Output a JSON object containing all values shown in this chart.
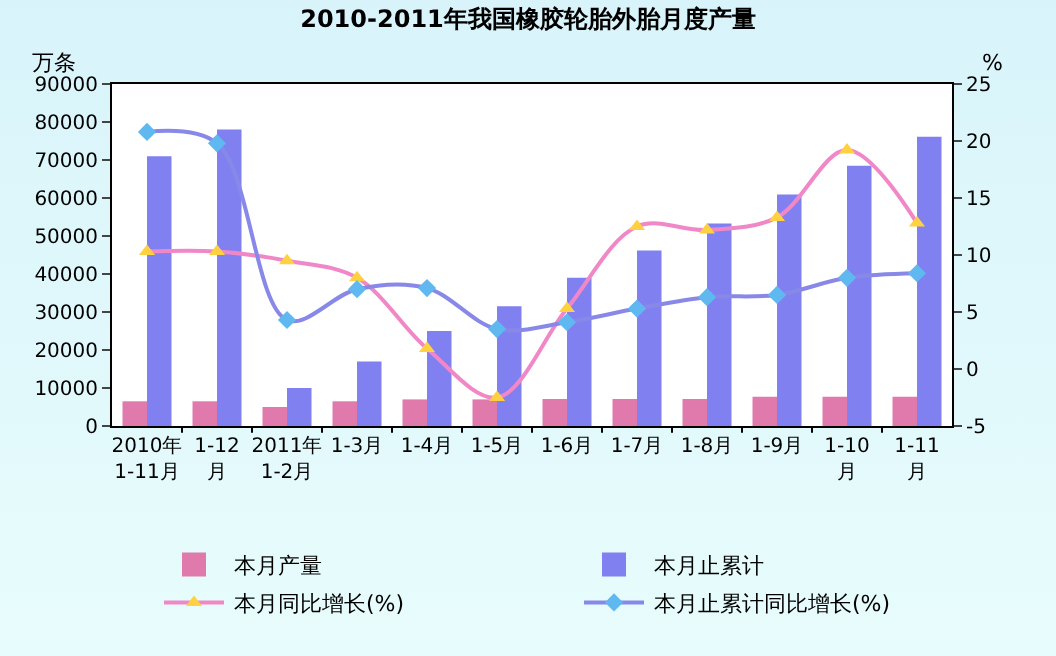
{
  "chart_data": {
    "type": "bar",
    "title": "2010-2011年我国橡胶轮胎外胎月度产量",
    "ylabel": "万条",
    "y2label": "%",
    "categories": [
      "2010年1-11月",
      "1-12月",
      "2011年1-2月",
      "1-3月",
      "1-4月",
      "1-5月",
      "1-6月",
      "1-7月",
      "1-8月",
      "1-9月",
      "1-10月",
      "1-11月"
    ],
    "series": [
      {
        "name": "本月产量",
        "color": "#e07aac",
        "values": [
          6500,
          6500,
          5000,
          6500,
          7000,
          7000,
          7100,
          7100,
          7100,
          7700,
          7700,
          7700
        ]
      },
      {
        "name": "本月止累计",
        "color": "#8080f0",
        "values": [
          71000,
          78000,
          10000,
          17000,
          25000,
          31500,
          39000,
          46200,
          53300,
          60900,
          68500,
          76100
        ]
      },
      {
        "name": "本月同比增长(%)",
        "type": "line",
        "axis": "y2",
        "color": "#f088c8",
        "marker": "triangle",
        "values": [
          10.3,
          10.3,
          9.5,
          8.0,
          1.8,
          -2.5,
          5.3,
          12.5,
          12.2,
          13.3,
          19.2,
          12.8
        ]
      },
      {
        "name": "本月止累计同比增长(%)",
        "type": "line",
        "axis": "y2",
        "color": "#8888e8",
        "marker": "diamond",
        "values": [
          20.8,
          19.8,
          4.3,
          7.0,
          7.1,
          3.5,
          4.1,
          5.3,
          6.3,
          6.5,
          8.0,
          8.4
        ]
      }
    ],
    "ylim": [
      0,
      90000
    ],
    "yticks": [
      0,
      10000,
      20000,
      30000,
      40000,
      50000,
      60000,
      70000,
      80000,
      90000
    ],
    "y2lim": [
      -5,
      25
    ],
    "y2ticks": [
      -5,
      0,
      5,
      10,
      15,
      20,
      25
    ],
    "grid": false,
    "legend": "bottom"
  }
}
